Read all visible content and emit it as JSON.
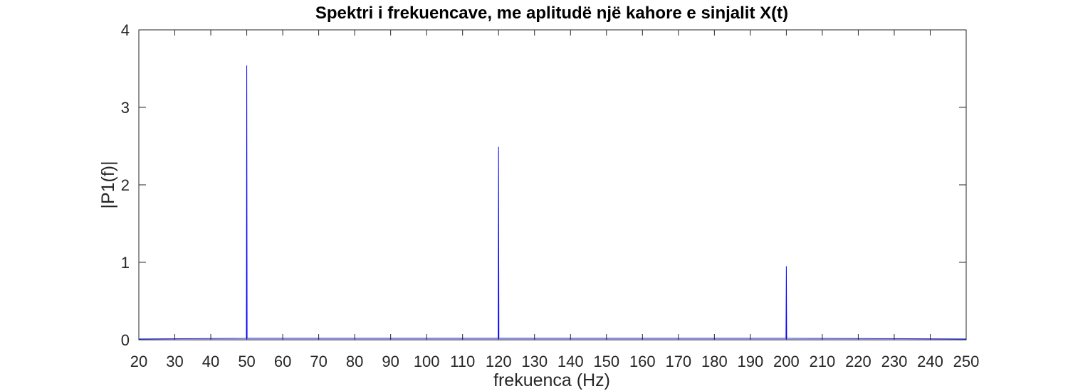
{
  "chart_data": {
    "type": "line",
    "title": "Spektri i frekuencave, me aplitudë një kahore e sinjalit X(t)",
    "xlabel": "frekuenca (Hz)",
    "ylabel": "|P1(f)|",
    "xlim": [
      20,
      250
    ],
    "ylim": [
      0,
      4
    ],
    "xticks": [
      20,
      30,
      40,
      50,
      60,
      70,
      80,
      90,
      100,
      110,
      120,
      130,
      140,
      150,
      160,
      170,
      180,
      190,
      200,
      210,
      220,
      230,
      240,
      250
    ],
    "yticks": [
      0,
      1,
      2,
      3,
      4
    ],
    "grid": false,
    "series": [
      {
        "color": "#0000ff",
        "x": [
          20,
          49.9,
          50,
          50.1,
          119.9,
          120,
          120.1,
          199.9,
          200,
          200.1,
          250
        ],
        "values": [
          0.01,
          0.02,
          3.54,
          0.02,
          0.02,
          2.49,
          0.02,
          0.02,
          0.95,
          0.02,
          0.01
        ]
      }
    ]
  }
}
